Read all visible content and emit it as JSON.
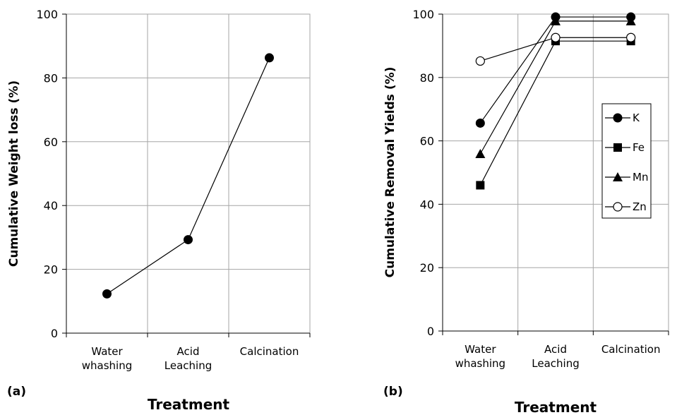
{
  "chart_data": [
    {
      "type": "line",
      "panel_label": "(a)",
      "xlabel": "Treatment",
      "ylabel": "Cumulative Weight loss (%)",
      "categories": [
        [
          "Water",
          "whashing"
        ],
        [
          "Acid",
          "Leaching"
        ],
        [
          "Calcination"
        ]
      ],
      "ylim": [
        0,
        100
      ],
      "yticks": [
        0,
        20,
        40,
        60,
        80,
        100
      ],
      "grid": true,
      "series": [
        {
          "values": [
            12.3,
            29.3,
            86.3
          ],
          "marker": "filled-circle"
        }
      ]
    },
    {
      "type": "line",
      "panel_label": "(b)",
      "xlabel": "Treatment",
      "ylabel": "Cumulative Removal Yields (%)",
      "categories": [
        [
          "Water",
          "whashing"
        ],
        [
          "Acid",
          "Leaching"
        ],
        [
          "Calcination"
        ]
      ],
      "ylim": [
        0,
        100
      ],
      "yticks": [
        0,
        20,
        40,
        60,
        80,
        100
      ],
      "grid": true,
      "legend": "right",
      "series": [
        {
          "name": "K",
          "values": [
            65.6,
            99.1,
            99.1
          ],
          "marker": "filled-circle"
        },
        {
          "name": "Fe",
          "values": [
            46.0,
            91.5,
            91.5
          ],
          "marker": "filled-square"
        },
        {
          "name": "Mn",
          "values": [
            55.9,
            97.8,
            97.8
          ],
          "marker": "filled-triangle"
        },
        {
          "name": "Zn",
          "values": [
            85.2,
            92.6,
            92.6
          ],
          "marker": "open-circle"
        }
      ]
    }
  ]
}
